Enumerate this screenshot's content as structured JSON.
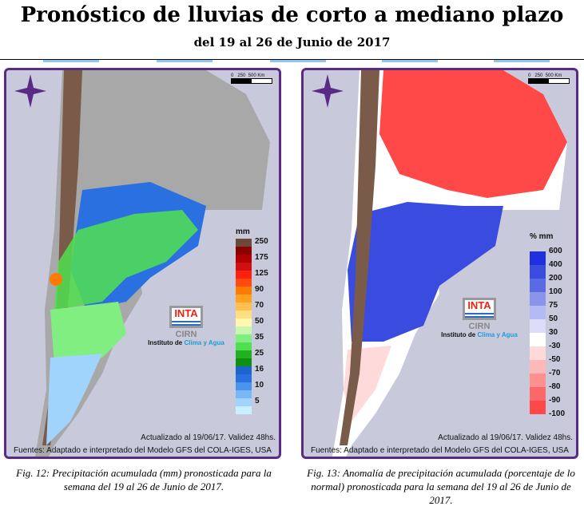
{
  "header": {
    "title": "Pronóstico de lluvias de corto a mediano plazo",
    "subtitle": "del 19 al 26 de Junio de 2017"
  },
  "map_common": {
    "scale_labels": [
      "0",
      "250",
      "500 Km"
    ],
    "updated": "Actualizado al 19/06/17. Validez 48hs.",
    "source": "Fuentes: Adaptado e interpretado del Modelo GFS del COLA-IGES, USA",
    "logo": {
      "inta": "INTA",
      "cirn": "CIRN",
      "institute_prefix": "Instituto de ",
      "institute_highlight": "Clima y Agua"
    }
  },
  "left_map": {
    "unit": "mm",
    "legend": [
      {
        "label": "250",
        "color": "#6b4a3a"
      },
      {
        "label": "",
        "color": "#8b0000"
      },
      {
        "label": "175",
        "color": "#b00000"
      },
      {
        "label": "",
        "color": "#d01010"
      },
      {
        "label": "125",
        "color": "#ff2010"
      },
      {
        "label": "",
        "color": "#ff4a10"
      },
      {
        "label": "90",
        "color": "#ff7a00"
      },
      {
        "label": "",
        "color": "#ffa020"
      },
      {
        "label": "70",
        "color": "#ffc050"
      },
      {
        "label": "",
        "color": "#ffe080"
      },
      {
        "label": "50",
        "color": "#fff8b0"
      },
      {
        "label": "",
        "color": "#c8f8b0"
      },
      {
        "label": "35",
        "color": "#80ee80"
      },
      {
        "label": "",
        "color": "#50e050"
      },
      {
        "label": "25",
        "color": "#20b020"
      },
      {
        "label": "",
        "color": "#109010"
      },
      {
        "label": "16",
        "color": "#1e64d0"
      },
      {
        "label": "",
        "color": "#2a70e0"
      },
      {
        "label": "10",
        "color": "#4a94f0"
      },
      {
        "label": "",
        "color": "#78b8f8"
      },
      {
        "label": "5",
        "color": "#a0d4fc"
      },
      {
        "label": "",
        "color": "#c8f0ff"
      }
    ],
    "caption": "Fig. 12: Precipitación acumulada (mm) pronosticada para la semana del 19 al 26 de Junio de 2017."
  },
  "right_map": {
    "unit": "% mm",
    "legend": [
      {
        "label": "600",
        "color": "#2030e0"
      },
      {
        "label": "400",
        "color": "#3a4ce0"
      },
      {
        "label": "200",
        "color": "#5a6ae4"
      },
      {
        "label": "100",
        "color": "#8a94ec"
      },
      {
        "label": "75",
        "color": "#b4baf4"
      },
      {
        "label": "50",
        "color": "#dcdef8"
      },
      {
        "label": "30",
        "color": "#ffffff"
      },
      {
        "label": "-30",
        "color": "#ffdada"
      },
      {
        "label": "-50",
        "color": "#ffb8b8"
      },
      {
        "label": "-70",
        "color": "#ff9090"
      },
      {
        "label": "-80",
        "color": "#ff6868"
      },
      {
        "label": "-90",
        "color": "#ff4848"
      },
      {
        "label": "-100",
        "color": ""
      }
    ],
    "caption": "Fig. 13: Anomalía de precipitación acumulada (porcentaje de lo normal) pronosticada para la semana del 19 al 26 de Junio  de 2017."
  }
}
